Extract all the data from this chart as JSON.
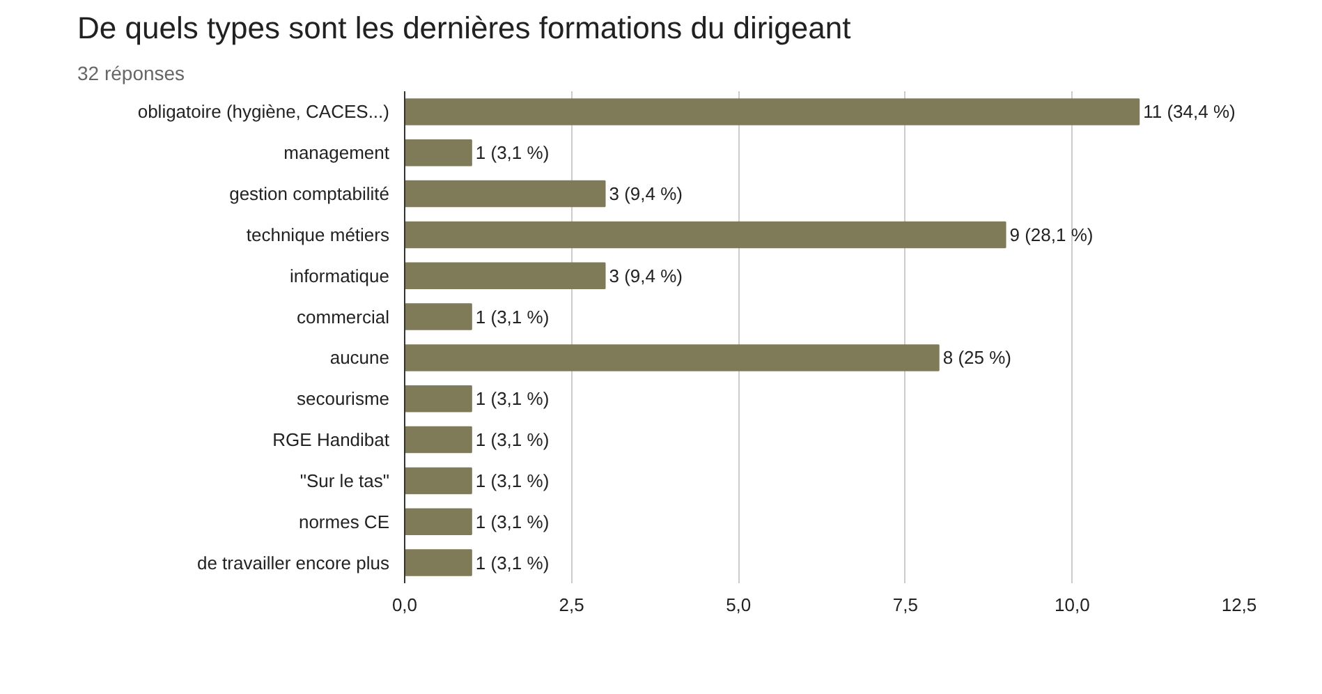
{
  "chart_data": {
    "type": "bar",
    "orientation": "horizontal",
    "title": "De quels types sont les dernières formations du dirigeant",
    "subtitle": "32 réponses",
    "categories": [
      "obligatoire (hygiène, CACES...)",
      "management",
      "gestion comptabilité",
      "technique métiers",
      "informatique",
      "commercial",
      "aucune",
      "secourisme",
      "RGE Handibat",
      "\"Sur le tas\"",
      "normes CE",
      "de travailler encore plus"
    ],
    "values": [
      11,
      1,
      3,
      9,
      3,
      1,
      8,
      1,
      1,
      1,
      1,
      1
    ],
    "value_labels": [
      "11 (34,4 %)",
      "1 (3,1 %)",
      "3 (9,4 %)",
      "9 (28,1 %)",
      "3 (9,4 %)",
      "1 (3,1 %)",
      "8 (25 %)",
      "1 (3,1 %)",
      "1 (3,1 %)",
      "1 (3,1 %)",
      "1 (3,1 %)",
      "1 (3,1 %)"
    ],
    "color": "#7f7b58",
    "xlim": [
      0,
      12.5
    ],
    "xticks": [
      {
        "value": 0,
        "label": "0,0"
      },
      {
        "value": 2.5,
        "label": "2,5"
      },
      {
        "value": 5,
        "label": "5,0"
      },
      {
        "value": 7.5,
        "label": "7,5"
      },
      {
        "value": 10,
        "label": "10,0"
      },
      {
        "value": 12.5,
        "label": "12,5"
      }
    ],
    "grid": "x"
  }
}
